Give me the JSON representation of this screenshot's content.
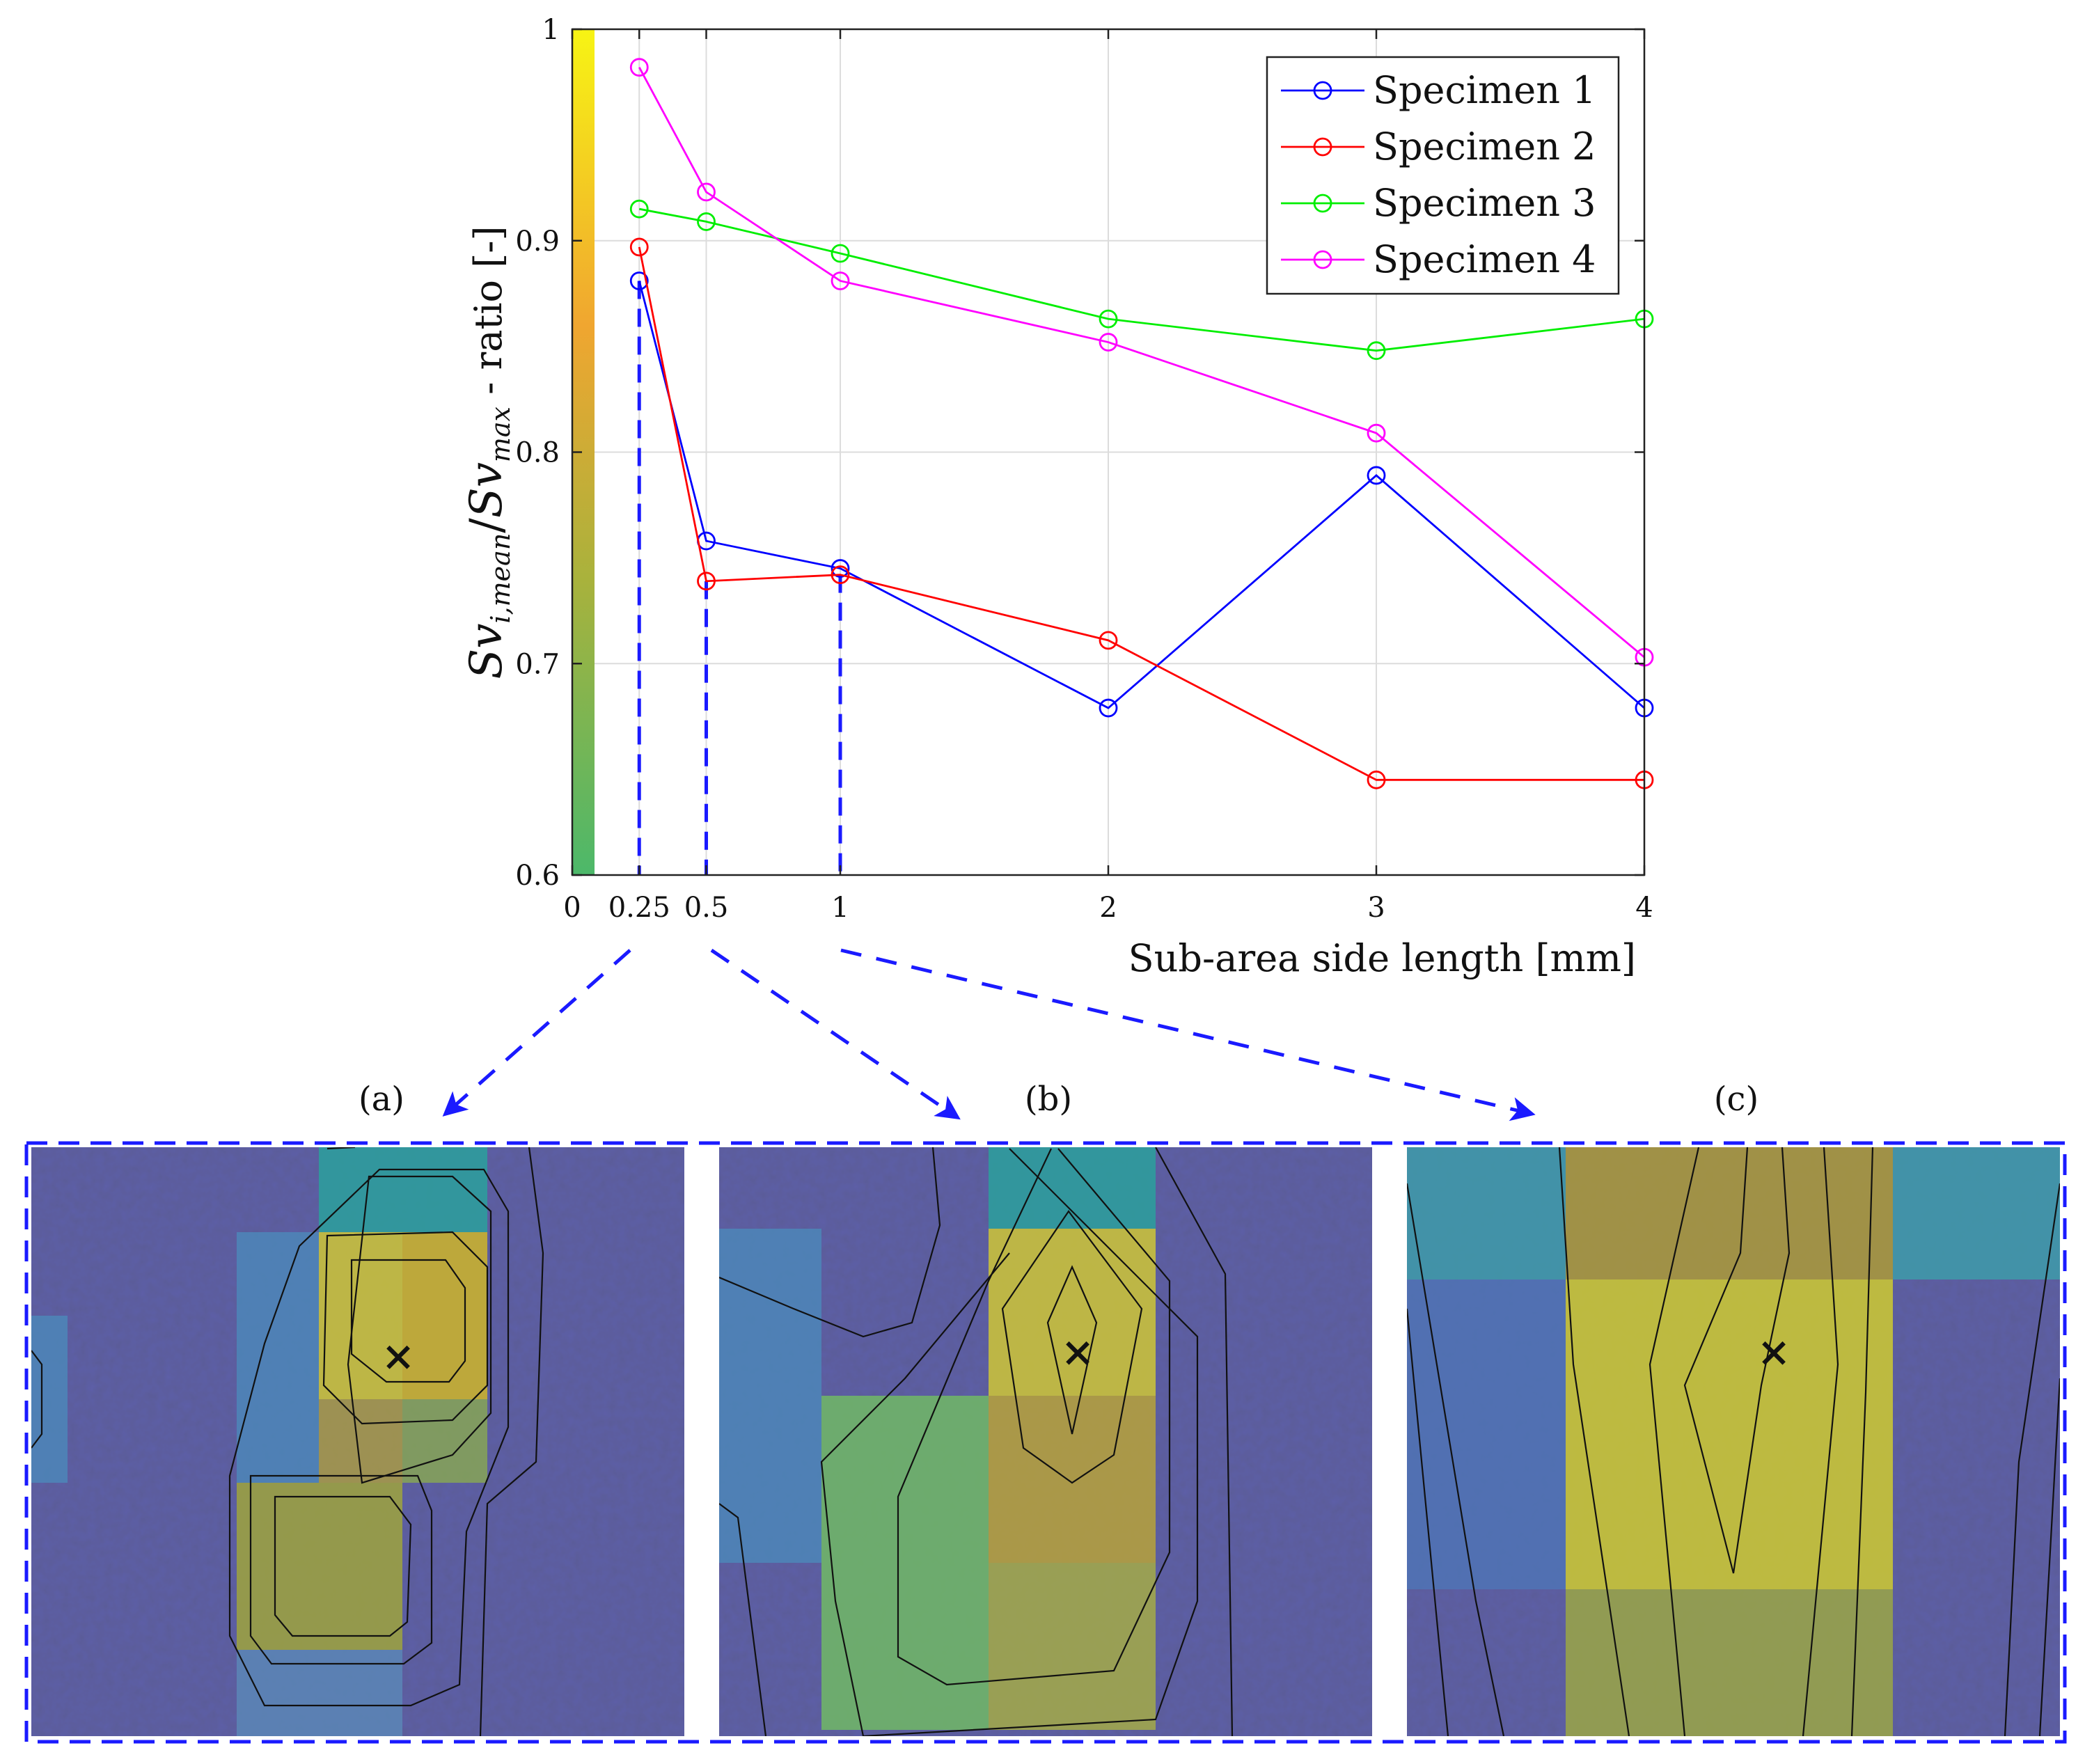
{
  "chart_data": {
    "type": "line",
    "xlabel": "Sub-area side length [mm]",
    "ylabel": "Sv_{i,mean}/Sv_{max} - ratio [-]",
    "ylabel_parts": {
      "sv1": "Sv",
      "sub1": "i,mean",
      "slash": "/",
      "sv2": "Sv",
      "sub2": "max",
      "rest": " - ratio [-]"
    },
    "xlim": [
      0,
      4
    ],
    "ylim": [
      0.6,
      1.0
    ],
    "x_ticks": [
      0,
      0.25,
      0.5,
      1,
      2,
      3,
      4
    ],
    "x_tick_labels": [
      "0",
      "0.25",
      "0.5",
      "1",
      "2",
      "3",
      "4"
    ],
    "y_ticks": [
      0.6,
      0.7,
      0.8,
      0.9,
      1.0
    ],
    "y_tick_labels": [
      "0.6",
      "0.7",
      "0.8",
      "0.9",
      "1"
    ],
    "grid": true,
    "legend_position": "top-right",
    "x": [
      0.25,
      0.5,
      1,
      2,
      3,
      4
    ],
    "series": [
      {
        "name": "Specimen 1",
        "color": "#0000ff",
        "values": [
          0.881,
          0.758,
          0.745,
          0.679,
          0.789,
          0.679
        ]
      },
      {
        "name": "Specimen 2",
        "color": "#ff0000",
        "values": [
          0.897,
          0.739,
          0.742,
          0.711,
          0.645,
          0.645
        ]
      },
      {
        "name": "Specimen 3",
        "color": "#00ee00",
        "values": [
          0.915,
          0.909,
          0.894,
          0.863,
          0.848,
          0.863
        ]
      },
      {
        "name": "Specimen 4",
        "color": "#ff00ff",
        "values": [
          0.982,
          0.923,
          0.881,
          0.852,
          0.809,
          0.703
        ]
      }
    ],
    "annotations": {
      "dashed_drop_lines_at_x": [
        0.25,
        0.5,
        1
      ],
      "panel_labels": [
        "(a)",
        "(b)",
        "(c)"
      ],
      "marker": "×"
    }
  },
  "colors": {
    "annotation_blue": "#1a1aff",
    "colorbar": [
      "#5bbd6a",
      "#b8b93a",
      "#f3a52e",
      "#f5f014"
    ]
  }
}
